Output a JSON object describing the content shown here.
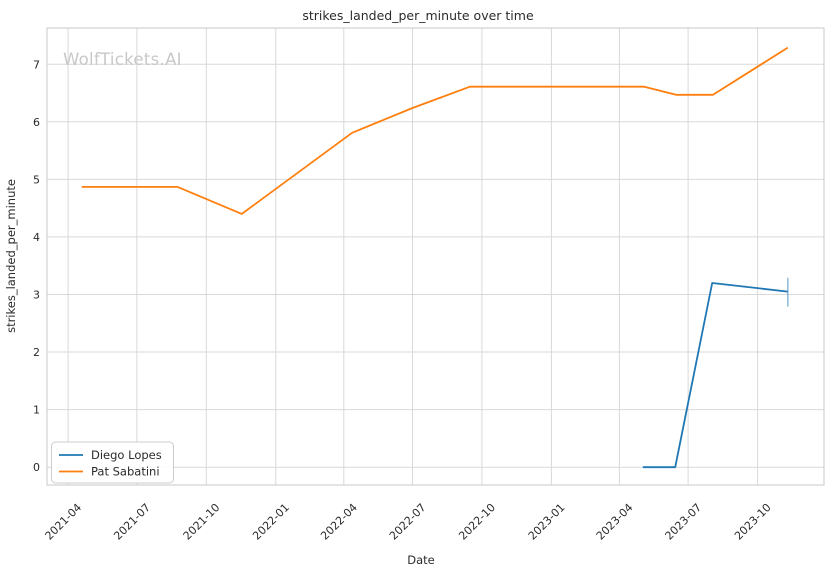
{
  "figure": {
    "title": "strikes_landed_per_minute over time",
    "watermark": "WolfTickets.AI"
  },
  "chart_data": {
    "type": "line",
    "title": "strikes_landed_per_minute over time",
    "xlabel": "Date",
    "ylabel": "strikes_landed_per_minute",
    "watermark": "WolfTickets.AI",
    "grid": true,
    "x_tick_labels": [
      "2021-04",
      "2021-07",
      "2021-10",
      "2022-01",
      "2022-04",
      "2022-07",
      "2022-10",
      "2023-01",
      "2023-04",
      "2023-07",
      "2023-10"
    ],
    "x_tick_dates": [
      "2021-04-01",
      "2021-07-01",
      "2021-10-01",
      "2022-01-01",
      "2022-04-01",
      "2022-07-01",
      "2022-10-01",
      "2023-01-01",
      "2023-04-01",
      "2023-07-01",
      "2023-10-01"
    ],
    "y_ticks": [
      0,
      1,
      2,
      3,
      4,
      5,
      6,
      7
    ],
    "xlim": [
      "2021-03-04",
      "2023-12-28"
    ],
    "ylim": [
      -0.31,
      7.63
    ],
    "legend": {
      "position": "lower left",
      "entries": [
        "Diego Lopes",
        "Pat Sabatini"
      ]
    },
    "series": [
      {
        "name": "Diego Lopes",
        "color": "#1f77b4",
        "points": [
          [
            "2023-05-02",
            0.0
          ],
          [
            "2023-06-14",
            0.0
          ],
          [
            "2023-08-02",
            3.2
          ],
          [
            "2023-11-10",
            3.05
          ]
        ],
        "end_cap": {
          "date": "2023-11-10",
          "low": 2.79,
          "high": 3.29
        }
      },
      {
        "name": "Pat Sabatini",
        "color": "#ff7f0e",
        "points": [
          [
            "2021-04-19",
            4.87
          ],
          [
            "2021-08-24",
            4.87
          ],
          [
            "2021-11-17",
            4.4
          ],
          [
            "2022-04-12",
            5.81
          ],
          [
            "2022-07-01",
            6.24
          ],
          [
            "2022-09-15",
            6.61
          ],
          [
            "2023-05-04",
            6.61
          ],
          [
            "2023-06-15",
            6.47
          ],
          [
            "2023-08-03",
            6.47
          ],
          [
            "2023-11-10",
            7.29
          ]
        ]
      }
    ],
    "colors": {
      "background": "#ffffff",
      "grid": "#d9d9d9",
      "spine": "#c9c9c9",
      "text": "#2b2b2b",
      "watermark": "#c8c8c8"
    }
  }
}
